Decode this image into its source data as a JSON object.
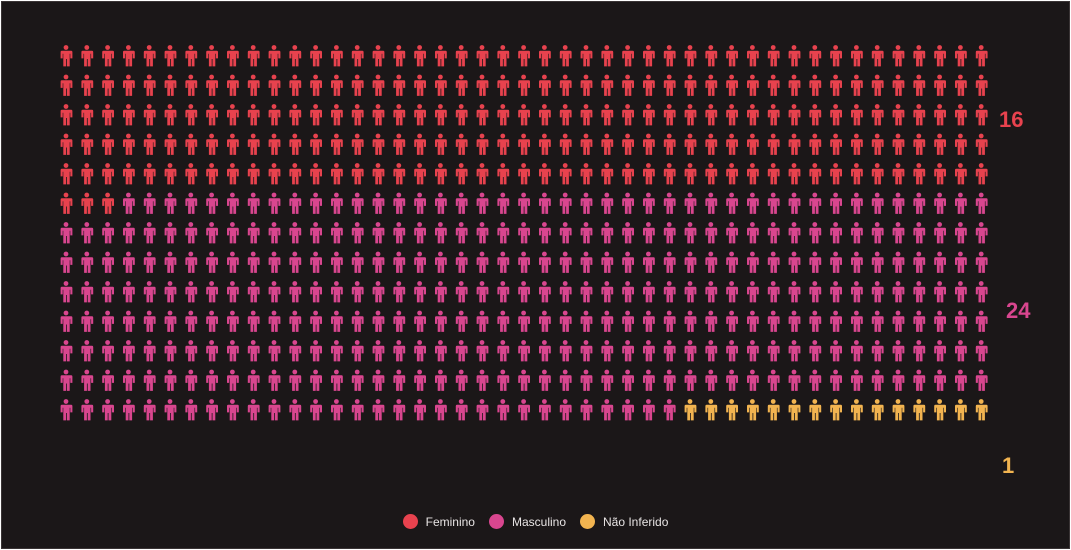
{
  "chart_data": {
    "type": "icon-array",
    "icon": "person-icon",
    "columns": 45,
    "rows": 13,
    "total_icons": 585,
    "series": [
      {
        "name": "Feminino",
        "value": 16,
        "icon_count": 228,
        "color": "#e8424e"
      },
      {
        "name": "Masculino",
        "value": 24,
        "icon_count": 342,
        "color": "#d9468f"
      },
      {
        "name": "Não Inferido",
        "value": 1,
        "icon_count": 15,
        "color": "#f2b450"
      }
    ],
    "legend_position": "bottom-center"
  },
  "counts": {
    "feminino": "16",
    "masculino": "24",
    "nao_inferido": "1"
  },
  "legend": [
    {
      "label": "Feminino",
      "color": "#e8424e"
    },
    {
      "label": "Masculino",
      "color": "#d9468f"
    },
    {
      "label": "Não Inferido",
      "color": "#f2b450"
    }
  ]
}
